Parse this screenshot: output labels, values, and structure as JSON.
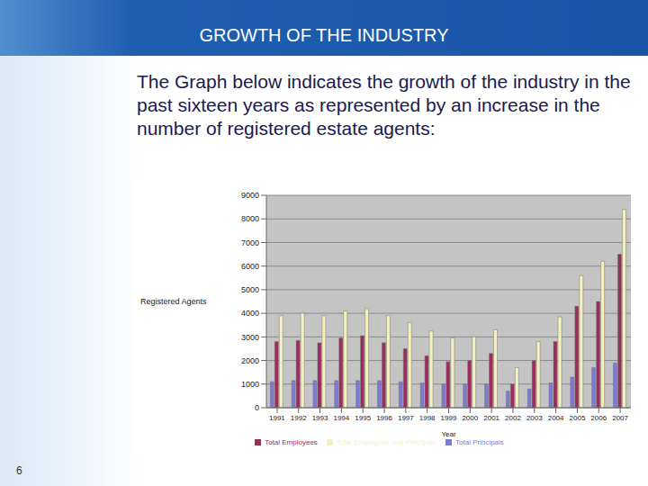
{
  "slide": {
    "title": "GROWTH OF THE INDUSTRY",
    "text": "The Graph below indicates the growth of the industry in the past sixteen years as represented by an increase in the number of registered estate agents:",
    "page_number": "6"
  },
  "chart_data": {
    "type": "bar",
    "x_label": "Year",
    "y_label": "Registered Agents",
    "categories": [
      "1991",
      "1992",
      "1993",
      "1994",
      "1995",
      "1996",
      "1997",
      "1998",
      "1999",
      "2000",
      "2001",
      "2002",
      "2003",
      "2004",
      "2005",
      "2006",
      "2007"
    ],
    "series": [
      {
        "name": "Total Principals",
        "color": "#7b7bd6",
        "values": [
          1100,
          1150,
          1150,
          1150,
          1150,
          1150,
          1100,
          1050,
          1000,
          1000,
          1000,
          700,
          800,
          1050,
          1300,
          1700,
          1900
        ]
      },
      {
        "name": "Total Employees",
        "color": "#9e2b5c",
        "values": [
          2800,
          2850,
          2750,
          2950,
          3050,
          2750,
          2500,
          2200,
          1950,
          2000,
          2300,
          1000,
          2000,
          2800,
          4300,
          4500,
          6500
        ]
      },
      {
        "name": "Total Employees and Principals",
        "color": "#f5f0c0",
        "values": [
          3900,
          4000,
          3900,
          4100,
          4200,
          3900,
          3600,
          3250,
          2950,
          3000,
          3300,
          1700,
          2800,
          3850,
          5600,
          6200,
          8400
        ]
      }
    ],
    "ylim": [
      0,
      9000
    ],
    "yticks": [
      0,
      1000,
      2000,
      3000,
      4000,
      5000,
      6000,
      7000,
      8000,
      9000
    ],
    "grid": true,
    "legend": "bottom"
  }
}
